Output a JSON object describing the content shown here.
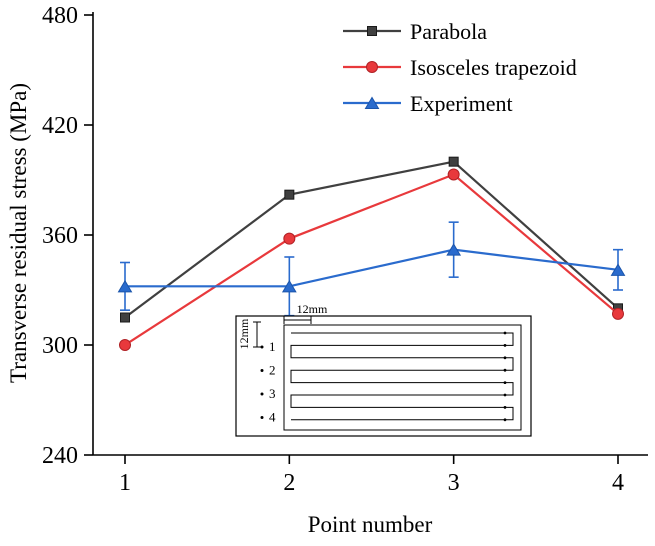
{
  "chart_data": {
    "type": "line",
    "x": [
      1,
      2,
      3,
      4
    ],
    "xticks": [
      "1",
      "2",
      "3",
      "4"
    ],
    "yticks": [
      240,
      300,
      360,
      420,
      480
    ],
    "ylim": [
      240,
      480
    ],
    "xlabel": "Point number",
    "ylabel": "Transverse residual stress  (MPa)",
    "grid": false,
    "legend_position": "top-inside",
    "series": [
      {
        "name": "Parabola",
        "color": "#404040",
        "edge": "#1a1a1a",
        "marker": "square",
        "values": [
          315,
          382,
          400,
          320
        ]
      },
      {
        "name": "Isosceles trapezoid",
        "color": "#e8393c",
        "edge": "#b02125",
        "marker": "circle",
        "values": [
          300,
          358,
          393,
          317
        ]
      },
      {
        "name": "Experiment",
        "color": "#2a6bcd",
        "edge": "#1b55ab",
        "marker": "triangle",
        "values": [
          332,
          332,
          352,
          341
        ],
        "error": [
          13,
          16,
          15,
          11
        ]
      }
    ]
  },
  "inset": {
    "dim_width_label": "12mm",
    "dim_height_label": "12mm",
    "point_labels": [
      "1",
      "2",
      "3",
      "4"
    ]
  }
}
